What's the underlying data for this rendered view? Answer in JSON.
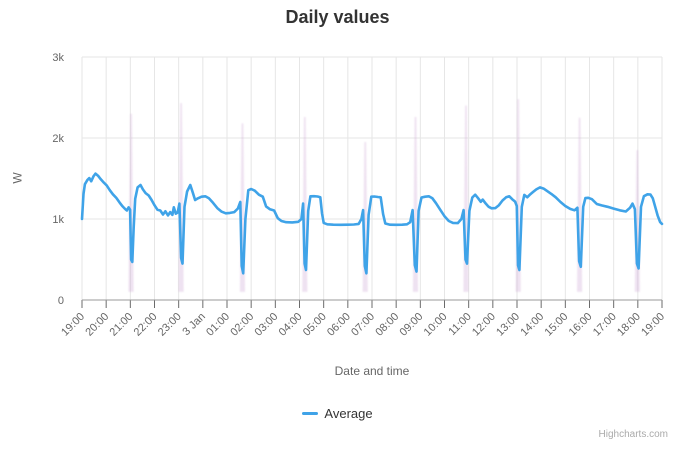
{
  "chart_data": {
    "type": "line",
    "title": "Daily values",
    "xlabel": "Date and time",
    "ylabel": "W",
    "ylim": [
      0,
      3000
    ],
    "x_unit_hours": 24,
    "grid": true,
    "legend_position": "bottom-center",
    "y_ticks": [
      {
        "label": "0",
        "value": 0
      },
      {
        "label": "1k",
        "value": 1000
      },
      {
        "label": "2k",
        "value": 2000
      },
      {
        "label": "3k",
        "value": 3000
      }
    ],
    "x_ticks": [
      "19:00",
      "20:00",
      "21:00",
      "22:00",
      "23:00",
      "3 Jan",
      "01:00",
      "02:00",
      "03:00",
      "04:00",
      "05:00",
      "06:00",
      "07:00",
      "08:00",
      "09:00",
      "10:00",
      "11:00",
      "12:00",
      "13:00",
      "14:00",
      "15:00",
      "16:00",
      "17:00",
      "18:00",
      "19:00"
    ],
    "series": [
      {
        "name": "Average",
        "color": "#3fa3e8",
        "points": [
          [
            0,
            1000
          ],
          [
            0.06,
            1310
          ],
          [
            0.12,
            1430
          ],
          [
            0.22,
            1480
          ],
          [
            0.3,
            1505
          ],
          [
            0.38,
            1465
          ],
          [
            0.48,
            1530
          ],
          [
            0.56,
            1560
          ],
          [
            0.66,
            1535
          ],
          [
            0.78,
            1490
          ],
          [
            0.9,
            1450
          ],
          [
            1.02,
            1415
          ],
          [
            1.15,
            1355
          ],
          [
            1.28,
            1305
          ],
          [
            1.42,
            1260
          ],
          [
            1.55,
            1205
          ],
          [
            1.68,
            1155
          ],
          [
            1.78,
            1125
          ],
          [
            1.86,
            1105
          ],
          [
            1.93,
            1145
          ],
          [
            1.99,
            1115
          ],
          [
            2.03,
            500
          ],
          [
            2.08,
            470
          ],
          [
            2.14,
            900
          ],
          [
            2.2,
            1250
          ],
          [
            2.3,
            1390
          ],
          [
            2.42,
            1420
          ],
          [
            2.52,
            1365
          ],
          [
            2.63,
            1320
          ],
          [
            2.76,
            1290
          ],
          [
            2.88,
            1235
          ],
          [
            3.0,
            1170
          ],
          [
            3.12,
            1115
          ],
          [
            3.24,
            1105
          ],
          [
            3.35,
            1055
          ],
          [
            3.45,
            1095
          ],
          [
            3.56,
            1045
          ],
          [
            3.65,
            1085
          ],
          [
            3.74,
            1050
          ],
          [
            3.8,
            1145
          ],
          [
            3.88,
            1065
          ],
          [
            3.96,
            1080
          ],
          [
            4.03,
            1190
          ],
          [
            4.1,
            520
          ],
          [
            4.16,
            450
          ],
          [
            4.24,
            1150
          ],
          [
            4.35,
            1340
          ],
          [
            4.48,
            1420
          ],
          [
            4.58,
            1330
          ],
          [
            4.68,
            1235
          ],
          [
            4.8,
            1255
          ],
          [
            4.95,
            1275
          ],
          [
            5.1,
            1280
          ],
          [
            5.25,
            1255
          ],
          [
            5.42,
            1200
          ],
          [
            5.6,
            1135
          ],
          [
            5.78,
            1090
          ],
          [
            5.95,
            1070
          ],
          [
            6.12,
            1075
          ],
          [
            6.3,
            1085
          ],
          [
            6.45,
            1130
          ],
          [
            6.55,
            1210
          ],
          [
            6.61,
            420
          ],
          [
            6.67,
            330
          ],
          [
            6.76,
            1000
          ],
          [
            6.88,
            1355
          ],
          [
            7.0,
            1370
          ],
          [
            7.15,
            1350
          ],
          [
            7.32,
            1300
          ],
          [
            7.48,
            1275
          ],
          [
            7.62,
            1155
          ],
          [
            7.78,
            1120
          ],
          [
            7.95,
            1105
          ],
          [
            8.1,
            1010
          ],
          [
            8.25,
            975
          ],
          [
            8.45,
            960
          ],
          [
            8.7,
            958
          ],
          [
            8.95,
            965
          ],
          [
            9.08,
            1000
          ],
          [
            9.15,
            1190
          ],
          [
            9.21,
            450
          ],
          [
            9.27,
            370
          ],
          [
            9.36,
            1100
          ],
          [
            9.45,
            1280
          ],
          [
            9.6,
            1282
          ],
          [
            9.75,
            1278
          ],
          [
            9.86,
            1268
          ],
          [
            9.93,
            1070
          ],
          [
            10.0,
            952
          ],
          [
            10.15,
            935
          ],
          [
            10.4,
            930
          ],
          [
            10.7,
            928
          ],
          [
            11.0,
            930
          ],
          [
            11.25,
            932
          ],
          [
            11.45,
            940
          ],
          [
            11.56,
            1000
          ],
          [
            11.63,
            1110
          ],
          [
            11.7,
            420
          ],
          [
            11.77,
            330
          ],
          [
            11.86,
            1050
          ],
          [
            11.97,
            1275
          ],
          [
            12.1,
            1278
          ],
          [
            12.25,
            1272
          ],
          [
            12.36,
            1268
          ],
          [
            12.46,
            1060
          ],
          [
            12.55,
            945
          ],
          [
            12.75,
            930
          ],
          [
            13.0,
            928
          ],
          [
            13.25,
            930
          ],
          [
            13.45,
            935
          ],
          [
            13.58,
            960
          ],
          [
            13.68,
            1110
          ],
          [
            13.77,
            430
          ],
          [
            13.84,
            350
          ],
          [
            13.93,
            1100
          ],
          [
            14.05,
            1265
          ],
          [
            14.2,
            1275
          ],
          [
            14.35,
            1280
          ],
          [
            14.5,
            1255
          ],
          [
            14.65,
            1195
          ],
          [
            14.82,
            1115
          ],
          [
            15.0,
            1035
          ],
          [
            15.18,
            975
          ],
          [
            15.35,
            952
          ],
          [
            15.55,
            950
          ],
          [
            15.7,
            1000
          ],
          [
            15.79,
            1110
          ],
          [
            15.87,
            500
          ],
          [
            15.93,
            450
          ],
          [
            16.03,
            1100
          ],
          [
            16.15,
            1265
          ],
          [
            16.27,
            1300
          ],
          [
            16.38,
            1262
          ],
          [
            16.5,
            1212
          ],
          [
            16.58,
            1240
          ],
          [
            16.7,
            1192
          ],
          [
            16.82,
            1152
          ],
          [
            16.95,
            1132
          ],
          [
            17.1,
            1135
          ],
          [
            17.25,
            1170
          ],
          [
            17.4,
            1228
          ],
          [
            17.55,
            1268
          ],
          [
            17.68,
            1280
          ],
          [
            17.8,
            1245
          ],
          [
            17.92,
            1215
          ],
          [
            17.99,
            1160
          ],
          [
            18.04,
            430
          ],
          [
            18.1,
            370
          ],
          [
            18.2,
            1150
          ],
          [
            18.3,
            1298
          ],
          [
            18.42,
            1268
          ],
          [
            18.52,
            1298
          ],
          [
            18.65,
            1330
          ],
          [
            18.8,
            1365
          ],
          [
            18.95,
            1390
          ],
          [
            19.1,
            1375
          ],
          [
            19.25,
            1345
          ],
          [
            19.42,
            1310
          ],
          [
            19.6,
            1268
          ],
          [
            19.8,
            1210
          ],
          [
            20.0,
            1160
          ],
          [
            20.2,
            1125
          ],
          [
            20.38,
            1108
          ],
          [
            20.5,
            1140
          ],
          [
            20.57,
            480
          ],
          [
            20.64,
            410
          ],
          [
            20.74,
            1150
          ],
          [
            20.83,
            1258
          ],
          [
            20.95,
            1262
          ],
          [
            21.1,
            1245
          ],
          [
            21.3,
            1185
          ],
          [
            21.5,
            1168
          ],
          [
            21.75,
            1150
          ],
          [
            22.0,
            1128
          ],
          [
            22.25,
            1108
          ],
          [
            22.5,
            1092
          ],
          [
            22.68,
            1140
          ],
          [
            22.78,
            1190
          ],
          [
            22.88,
            1120
          ],
          [
            22.96,
            450
          ],
          [
            23.03,
            390
          ],
          [
            23.13,
            1150
          ],
          [
            23.25,
            1282
          ],
          [
            23.4,
            1305
          ],
          [
            23.52,
            1302
          ],
          [
            23.62,
            1255
          ],
          [
            23.72,
            1150
          ],
          [
            23.82,
            1045
          ],
          [
            23.92,
            962
          ],
          [
            24.0,
            940
          ]
        ]
      }
    ],
    "range_spikes": {
      "note": "faint min-max range flares behind the line at each cycling dip",
      "color": "#cda6d4",
      "opacity": 0.32,
      "min": 100,
      "points": [
        [
          2.03,
          2300
        ],
        [
          4.1,
          2430
        ],
        [
          6.64,
          2180
        ],
        [
          9.22,
          2260
        ],
        [
          11.72,
          1950
        ],
        [
          13.8,
          2260
        ],
        [
          15.89,
          2400
        ],
        [
          18.05,
          2480
        ],
        [
          20.59,
          2250
        ],
        [
          22.98,
          1850
        ]
      ]
    }
  },
  "credits": {
    "text": "Highcharts.com"
  },
  "colors": {
    "grid": "#e6e6e6",
    "axis_line": "#999999",
    "tick": "#6b6b6b",
    "axis_text": "#666666",
    "title_text": "#333333",
    "credits_text": "#aaaaaa"
  }
}
